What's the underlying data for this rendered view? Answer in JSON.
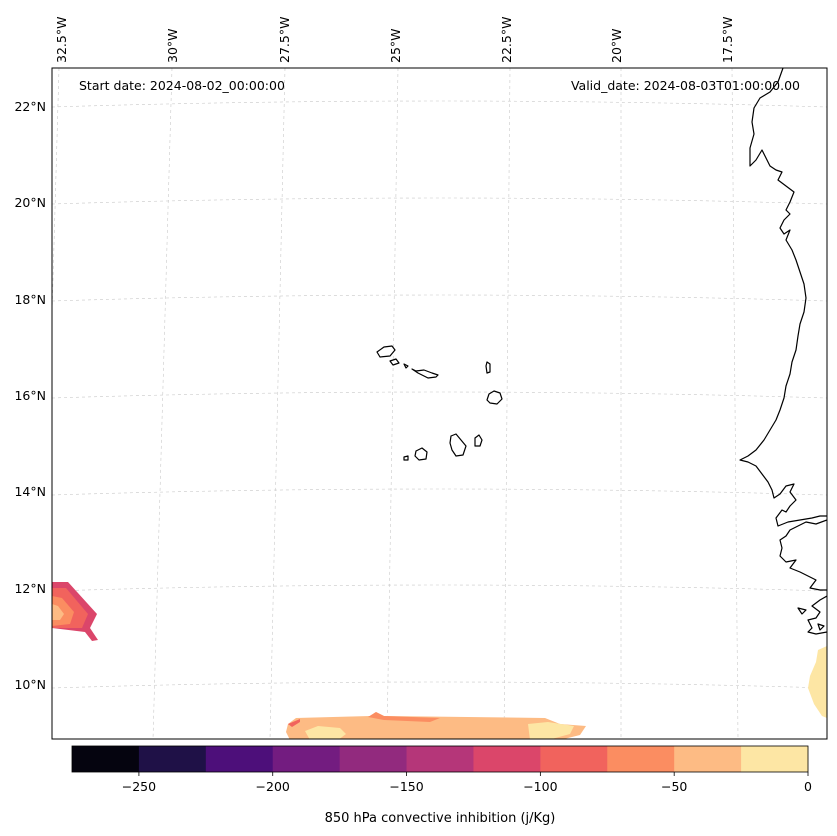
{
  "header": {
    "start_date": "Start date: 2024-08-02_00:00:00",
    "valid_date": "Valid_date: 2024-08-03T01:00:00.00"
  },
  "map": {
    "projection": "conic",
    "lon_range": [
      -33,
      -15.5
    ],
    "lat_range": [
      9,
      22.8
    ],
    "lon_ticks": [
      {
        "value": -32.5,
        "label": "32.5°W"
      },
      {
        "value": -30,
        "label": "30°W"
      },
      {
        "value": -27.5,
        "label": "27.5°W"
      },
      {
        "value": -25,
        "label": "25°W"
      },
      {
        "value": -22.5,
        "label": "22.5°W"
      },
      {
        "value": -20,
        "label": "20°W"
      },
      {
        "value": -17.5,
        "label": "17.5°W"
      }
    ],
    "lat_ticks": [
      {
        "value": 22,
        "label": "22°N"
      },
      {
        "value": 20,
        "label": "20°N"
      },
      {
        "value": 18,
        "label": "18°N"
      },
      {
        "value": 16,
        "label": "16°N"
      },
      {
        "value": 14,
        "label": "14°N"
      },
      {
        "value": 12,
        "label": "12°N"
      },
      {
        "value": 10,
        "label": "10°N"
      }
    ],
    "grid": true,
    "features": [
      "West African coastline",
      "Cape Verde islands"
    ]
  },
  "colorbar": {
    "label": "850 hPa convective inhibition (j/Kg)",
    "min": -275,
    "max": 0,
    "levels": [
      -275,
      -250,
      -225,
      -200,
      -175,
      -150,
      -125,
      -100,
      -75,
      -50,
      -25,
      0
    ],
    "colors": [
      "#05040f",
      "#1f1147",
      "#4d0f7a",
      "#731c80",
      "#922a7e",
      "#b53679",
      "#db466a",
      "#f1635d",
      "#fb8d61",
      "#fdbb84",
      "#fde6a4"
    ],
    "tick_labels": [
      {
        "value": -250,
        "label": "−250"
      },
      {
        "value": -200,
        "label": "−200"
      },
      {
        "value": -150,
        "label": "−150"
      },
      {
        "value": -100,
        "label": "−100"
      },
      {
        "value": -50,
        "label": "−50"
      },
      {
        "value": 0,
        "label": "0"
      }
    ]
  }
}
